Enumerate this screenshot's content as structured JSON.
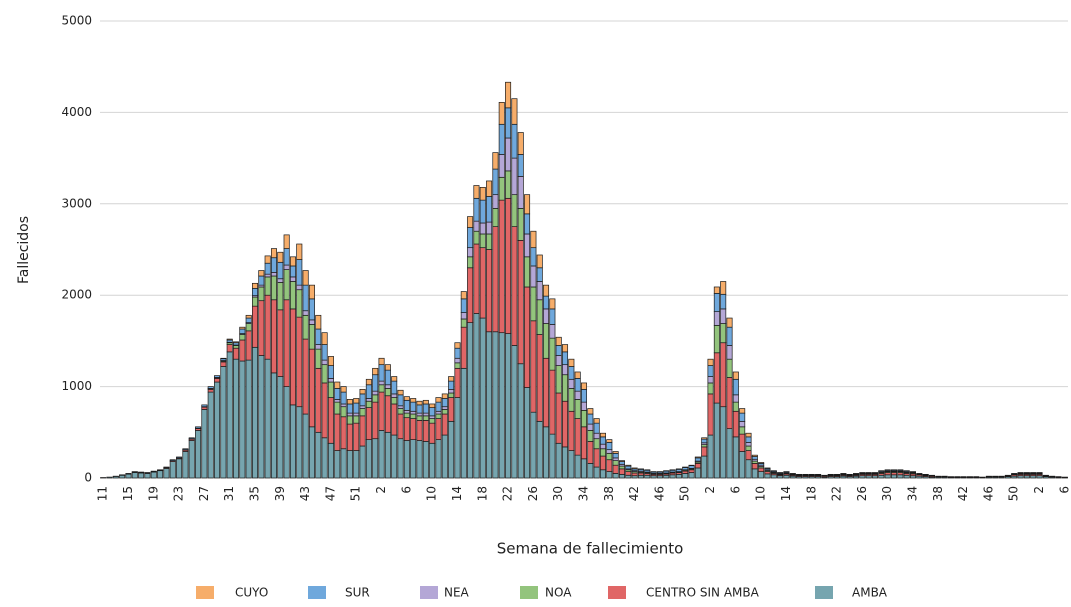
{
  "chart_data": {
    "type": "stacked_bar",
    "xlabel": "Semana de fallecimiento",
    "ylabel": "Fallecidos",
    "ylim": [
      0,
      5000
    ],
    "yticks": [
      0,
      1000,
      2000,
      3000,
      4000,
      5000
    ],
    "grid": true,
    "legend": "bottom",
    "categories": [
      "11",
      null,
      null,
      null,
      "15",
      null,
      null,
      null,
      "19",
      null,
      null,
      null,
      "23",
      null,
      null,
      null,
      "27",
      null,
      null,
      null,
      "31",
      null,
      null,
      null,
      "35",
      null,
      null,
      null,
      "39",
      null,
      null,
      null,
      "43",
      null,
      null,
      null,
      "47",
      null,
      null,
      null,
      "51",
      null,
      null,
      null,
      "2",
      null,
      null,
      null,
      "6",
      null,
      null,
      null,
      "10",
      null,
      null,
      null,
      "14",
      null,
      null,
      null,
      "18",
      null,
      null,
      null,
      "22",
      null,
      null,
      null,
      "26",
      null,
      null,
      null,
      "30",
      null,
      null,
      null,
      "34",
      null,
      null,
      null,
      "38",
      null,
      null,
      null,
      "42",
      null,
      null,
      null,
      "46",
      null,
      null,
      null,
      "50",
      null,
      null,
      null,
      "2",
      null,
      null,
      null,
      "6",
      null,
      null,
      null,
      "10",
      null,
      null,
      null,
      "14",
      null,
      null,
      null,
      "18",
      null,
      null,
      null,
      "22",
      null,
      null,
      null,
      "26",
      null,
      null,
      null,
      "30",
      null,
      null,
      null,
      "34",
      null,
      null,
      null,
      "38",
      null,
      null,
      null,
      "42",
      null,
      null,
      null,
      "46",
      null,
      null,
      null,
      "50",
      null,
      null,
      null,
      "2",
      null,
      null,
      null,
      "6"
    ],
    "series": [
      {
        "name": "CUYO",
        "color": "#f6ad6a",
        "values": [
          0,
          0,
          0,
          0,
          0,
          0,
          0,
          0,
          0,
          0,
          0,
          0,
          0,
          0,
          0,
          0,
          0,
          0,
          0,
          5,
          10,
          10,
          20,
          30,
          55,
          60,
          80,
          100,
          110,
          150,
          100,
          170,
          160,
          150,
          150,
          130,
          100,
          70,
          60,
          50,
          50,
          50,
          60,
          70,
          70,
          60,
          50,
          50,
          40,
          40,
          40,
          40,
          40,
          50,
          50,
          50,
          60,
          80,
          120,
          140,
          140,
          170,
          180,
          240,
          280,
          280,
          240,
          210,
          180,
          140,
          120,
          110,
          90,
          80,
          80,
          70,
          70,
          60,
          50,
          40,
          30,
          20,
          10,
          10,
          10,
          5,
          5,
          5,
          5,
          5,
          5,
          5,
          5,
          5,
          10,
          15,
          70,
          70,
          140,
          100,
          80,
          50,
          40,
          15,
          10,
          5,
          5,
          5,
          5,
          5,
          0,
          0,
          0,
          0,
          0,
          0,
          0,
          5,
          0,
          5,
          5,
          5,
          5,
          5,
          5,
          5,
          5,
          5,
          5,
          0,
          0,
          0,
          0,
          0,
          0,
          0,
          0,
          0,
          0,
          0,
          0,
          0,
          0,
          0,
          0,
          5,
          5,
          5,
          5,
          0,
          0,
          0,
          0
        ]
      },
      {
        "name": "SUR",
        "color": "#6fa8dc",
        "values": [
          0,
          0,
          0,
          2,
          4,
          5,
          5,
          5,
          5,
          5,
          5,
          10,
          10,
          10,
          10,
          15,
          20,
          20,
          20,
          20,
          25,
          25,
          50,
          50,
          80,
          100,
          120,
          160,
          180,
          180,
          120,
          280,
          280,
          230,
          170,
          170,
          140,
          120,
          130,
          100,
          110,
          130,
          150,
          180,
          180,
          160,
          140,
          120,
          110,
          100,
          90,
          100,
          90,
          100,
          90,
          90,
          110,
          150,
          220,
          250,
          250,
          280,
          280,
          330,
          330,
          370,
          240,
          220,
          200,
          150,
          140,
          170,
          110,
          140,
          140,
          140,
          140,
          110,
          110,
          80,
          80,
          50,
          30,
          30,
          20,
          20,
          20,
          15,
          15,
          20,
          20,
          25,
          25,
          30,
          35,
          40,
          120,
          200,
          160,
          200,
          170,
          90,
          60,
          30,
          20,
          15,
          10,
          10,
          10,
          5,
          5,
          5,
          5,
          5,
          5,
          5,
          5,
          5,
          5,
          5,
          5,
          5,
          5,
          10,
          10,
          10,
          10,
          10,
          5,
          5,
          5,
          5,
          5,
          5,
          5,
          5,
          5,
          5,
          5,
          0,
          5,
          5,
          5,
          5,
          5,
          5,
          5,
          5,
          5,
          5,
          5,
          5,
          0
        ]
      },
      {
        "name": "NEA",
        "color": "#b4a7d6",
        "values": [
          0,
          0,
          0,
          0,
          0,
          0,
          0,
          0,
          0,
          0,
          0,
          0,
          0,
          0,
          0,
          0,
          0,
          5,
          5,
          5,
          5,
          5,
          10,
          10,
          15,
          20,
          30,
          40,
          40,
          50,
          50,
          50,
          50,
          50,
          50,
          50,
          40,
          30,
          30,
          30,
          30,
          30,
          30,
          40,
          40,
          40,
          40,
          30,
          30,
          30,
          30,
          30,
          30,
          30,
          30,
          40,
          50,
          70,
          100,
          110,
          120,
          130,
          150,
          250,
          360,
          400,
          350,
          250,
          230,
          200,
          160,
          150,
          110,
          110,
          100,
          90,
          90,
          70,
          60,
          50,
          40,
          30,
          20,
          10,
          10,
          10,
          5,
          5,
          5,
          5,
          5,
          5,
          5,
          5,
          10,
          20,
          70,
          150,
          160,
          150,
          80,
          60,
          40,
          20,
          15,
          10,
          5,
          5,
          5,
          5,
          5,
          5,
          5,
          5,
          0,
          5,
          5,
          5,
          5,
          5,
          5,
          5,
          5,
          5,
          5,
          5,
          5,
          5,
          5,
          5,
          5,
          0,
          0,
          0,
          0,
          0,
          0,
          0,
          0,
          0,
          0,
          0,
          0,
          0,
          5,
          5,
          5,
          5,
          5,
          0,
          0,
          0,
          0
        ]
      },
      {
        "name": "NOA",
        "color": "#93c47d",
        "values": [
          0,
          0,
          0,
          0,
          0,
          0,
          0,
          0,
          0,
          0,
          0,
          0,
          0,
          5,
          5,
          5,
          5,
          5,
          5,
          10,
          20,
          30,
          60,
          80,
          100,
          150,
          200,
          260,
          300,
          330,
          300,
          300,
          260,
          270,
          210,
          200,
          170,
          130,
          110,
          90,
          80,
          80,
          70,
          80,
          80,
          80,
          70,
          60,
          50,
          50,
          50,
          50,
          50,
          50,
          50,
          50,
          60,
          90,
          120,
          140,
          150,
          170,
          200,
          250,
          300,
          350,
          350,
          330,
          370,
          380,
          380,
          350,
          300,
          290,
          250,
          210,
          180,
          120,
          110,
          80,
          70,
          50,
          30,
          20,
          15,
          10,
          10,
          5,
          5,
          5,
          5,
          5,
          10,
          10,
          15,
          25,
          120,
          300,
          210,
          200,
          100,
          80,
          50,
          25,
          15,
          10,
          10,
          5,
          5,
          5,
          5,
          5,
          5,
          5,
          5,
          5,
          5,
          5,
          5,
          5,
          5,
          5,
          5,
          10,
          10,
          10,
          10,
          10,
          10,
          5,
          5,
          5,
          0,
          0,
          0,
          0,
          0,
          0,
          0,
          0,
          0,
          0,
          0,
          5,
          5,
          5,
          5,
          5,
          5,
          5,
          0,
          0,
          0
        ]
      },
      {
        "name": "CENTRO SIN AMBA",
        "color": "#e06666",
        "values": [
          0,
          0,
          2,
          3,
          4,
          5,
          5,
          5,
          5,
          5,
          10,
          10,
          10,
          15,
          15,
          20,
          25,
          30,
          40,
          50,
          80,
          120,
          230,
          320,
          450,
          600,
          700,
          800,
          730,
          950,
          1050,
          980,
          820,
          850,
          700,
          600,
          500,
          400,
          350,
          290,
          300,
          330,
          350,
          400,
          420,
          400,
          340,
          270,
          250,
          230,
          220,
          230,
          220,
          230,
          230,
          260,
          320,
          450,
          600,
          760,
          770,
          900,
          1150,
          1450,
          1480,
          1300,
          1350,
          1100,
          1000,
          950,
          750,
          700,
          550,
          500,
          430,
          400,
          350,
          240,
          200,
          150,
          130,
          90,
          60,
          40,
          30,
          25,
          20,
          15,
          15,
          15,
          20,
          20,
          25,
          30,
          50,
          100,
          450,
          550,
          700,
          560,
          280,
          190,
          100,
          60,
          40,
          25,
          15,
          10,
          15,
          10,
          10,
          10,
          10,
          10,
          10,
          10,
          10,
          10,
          10,
          10,
          15,
          15,
          15,
          20,
          25,
          25,
          25,
          20,
          20,
          15,
          10,
          10,
          5,
          5,
          5,
          5,
          5,
          5,
          5,
          5,
          5,
          5,
          5,
          5,
          15,
          15,
          15,
          15,
          15,
          5,
          5,
          5,
          5
        ]
      },
      {
        "name": "AMBA",
        "color": "#76a5af",
        "values": [
          5,
          10,
          18,
          30,
          42,
          60,
          55,
          50,
          65,
          80,
          105,
          180,
          210,
          290,
          410,
          520,
          750,
          940,
          1050,
          1220,
          1380,
          1300,
          1280,
          1290,
          1430,
          1340,
          1300,
          1150,
          1110,
          1000,
          800,
          780,
          700,
          560,
          500,
          440,
          380,
          300,
          320,
          300,
          300,
          350,
          420,
          430,
          520,
          500,
          470,
          430,
          410,
          420,
          410,
          400,
          380,
          420,
          470,
          620,
          880,
          1200,
          1700,
          1800,
          1750,
          1600,
          1600,
          1590,
          1580,
          1450,
          1250,
          990,
          720,
          620,
          560,
          480,
          380,
          340,
          300,
          250,
          210,
          160,
          120,
          90,
          70,
          50,
          40,
          30,
          25,
          30,
          30,
          25,
          25,
          30,
          35,
          40,
          50,
          60,
          110,
          240,
          470,
          820,
          780,
          540,
          450,
          290,
          200,
          100,
          70,
          45,
          35,
          25,
          30,
          20,
          15,
          15,
          15,
          15,
          10,
          15,
          15,
          20,
          15,
          20,
          25,
          25,
          25,
          30,
          35,
          35,
          35,
          30,
          25,
          20,
          15,
          10,
          10,
          10,
          5,
          5,
          5,
          5,
          5,
          5,
          10,
          10,
          10,
          15,
          20,
          25,
          25,
          25,
          25,
          15,
          10,
          5,
          5
        ]
      }
    ]
  }
}
